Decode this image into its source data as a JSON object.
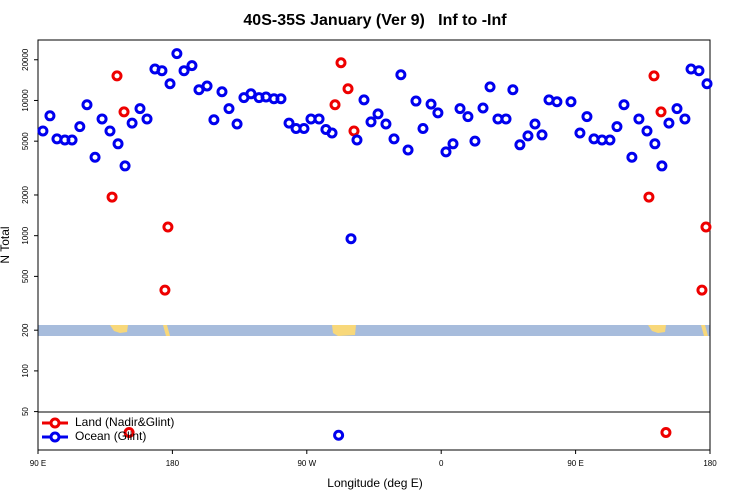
{
  "chart_data": {
    "type": "scatter",
    "title": "40S-35S January (Ver 9)   Inf to -Inf",
    "x_label": "Longitude (deg E)",
    "y_label": "N Total",
    "log_y": true,
    "legend": "lower left",
    "xlim": [
      90,
      540
    ],
    "ylim": [
      26,
      28000
    ],
    "xticks": [
      {
        "value": 90,
        "label": "90 E"
      },
      {
        "value": 180,
        "label": "180"
      },
      {
        "value": 270,
        "label": "90 W"
      },
      {
        "value": 360,
        "label": "0"
      },
      {
        "value": 450,
        "label": "90 E"
      },
      {
        "value": 540,
        "label": "180"
      }
    ],
    "yticks": [
      50,
      100,
      200,
      500,
      1000,
      2000,
      5000,
      10000,
      20000
    ],
    "series": [
      {
        "name": "Land (Nadir&Glint)",
        "color": "#ee0000",
        "x": [
          139.6,
          142.9,
          147.6,
          151,
          175,
          177,
          288.9,
          292.9,
          297.6,
          301.6,
          499.1,
          502.5,
          507.2,
          510.5,
          534.6,
          537.3
        ],
        "values": [
          1930,
          15200,
          8240,
          35,
          396,
          1160,
          9300,
          19000,
          12200,
          5950,
          1930,
          15200,
          8240,
          35,
          396,
          1160
        ]
      },
      {
        "name": "Ocean (Glint)",
        "color": "#0000ee",
        "x": [
          93.3,
          98,
          102.7,
          108,
          112.8,
          118,
          122.8,
          128.2,
          132.9,
          138.2,
          143.6,
          148.3,
          153,
          158.3,
          163,
          168.3,
          173,
          178.4,
          183,
          187.8,
          193.1,
          197.8,
          203.2,
          207.8,
          213.2,
          217.9,
          223.3,
          227.9,
          232.6,
          238,
          242.7,
          248,
          252.7,
          258.1,
          262.8,
          268.1,
          272.8,
          278.2,
          282.8,
          286.9,
          291.3,
          299.6,
          303.6,
          308.3,
          313,
          317.7,
          323,
          328.4,
          333,
          337.8,
          343.1,
          347.8,
          353.2,
          357.8,
          363.2,
          367.9,
          372.6,
          377.9,
          382.6,
          388,
          392.7,
          398,
          403.4,
          408,
          412.7,
          418.1,
          422.8,
          427.5,
          432.2,
          437.5,
          446.9,
          452.9,
          457.6,
          462.3,
          467.7,
          473,
          477.7,
          482.4,
          487.7,
          492.4,
          497.8,
          503.1,
          507.8,
          512.5,
          517.9,
          523.2,
          527.3,
          532.6,
          538
        ],
        "values": [
          5950,
          7700,
          5200,
          5100,
          5100,
          6400,
          9300,
          3800,
          7300,
          5950,
          4780,
          3280,
          6800,
          8700,
          7300,
          17100,
          16600,
          13300,
          22200,
          16600,
          18100,
          12000,
          12800,
          7200,
          11600,
          8700,
          6700,
          10500,
          11200,
          10500,
          10600,
          10300,
          10300,
          6800,
          6200,
          6200,
          7300,
          7300,
          6100,
          5750,
          33.4,
          950,
          5100,
          10100,
          6950,
          7960,
          6700,
          5200,
          15500,
          4300,
          9900,
          6200,
          9400,
          8100,
          4170,
          4780,
          8700,
          7600,
          5000,
          8800,
          12600,
          7300,
          7300,
          12000,
          4700,
          5470,
          6700,
          5560,
          10100,
          9780,
          9780,
          5750,
          7600,
          5200,
          5100,
          5100,
          6400,
          9300,
          3800,
          7300,
          5950,
          4780,
          3280,
          6800,
          8700,
          7300,
          17100,
          16600,
          13300
        ]
      }
    ]
  }
}
